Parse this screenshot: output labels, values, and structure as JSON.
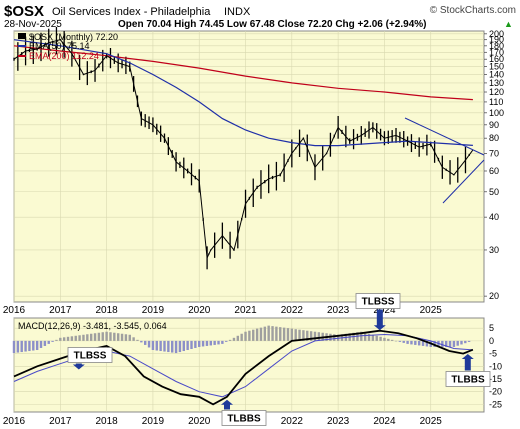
{
  "header": {
    "symbol": "$OSX",
    "name": "Oil Services Index - Philadelphia",
    "exchange": "INDX",
    "date": "28-Nov-2025",
    "ohlc_text": "Open 70.04  High 74.45  Low 67.48  Close 72.20  Chg +2.06 (+2.94%)",
    "ohlc_arrow": "▲",
    "watermark": "© StockCharts.com"
  },
  "colors": {
    "panel_bg": "#fafad2",
    "price": "#000000",
    "ema50": "#1f2fa8",
    "ema200": "#c0001a",
    "hist": "#9f9f9f",
    "hist_neg": "#8c8fc8",
    "macd": "#000000",
    "signal": "#4a4ac8",
    "annotation": "#1f3a9a",
    "trendline": "#1f2fa8"
  },
  "legend": {
    "price": "$OSX (Monthly) 72.20",
    "ema50": "EMA(50) 75.14",
    "ema200": "EMA(200) 112.24",
    "macd": "MACD(12,26,9) -3.481, -3.545, 0.064"
  },
  "annotations": [
    {
      "label": "TLBSS",
      "year": 2017.4,
      "value": -4
    },
    {
      "label": "TLBBS",
      "year": 2020.6,
      "value": -22
    },
    {
      "label": "TLBSS",
      "year": 2023.9,
      "value": 3
    },
    {
      "label": "TLBBS",
      "year": 2025.8,
      "value": -4
    }
  ],
  "chart_data": {
    "type": "line",
    "title": "$OSX Oil Services Index - Philadelphia INDX",
    "x_ticks": [
      2016,
      2017,
      2018,
      2019,
      2020,
      2021,
      2022,
      2023,
      2024,
      2025
    ],
    "x_tick_labels": [
      "2016",
      "2017",
      "2018",
      "2019",
      "2020",
      "2021",
      "2022",
      "2023",
      "2024",
      "2025"
    ],
    "price_axis": {
      "scale": "log",
      "range": [
        19,
        205
      ],
      "ticks": [
        20,
        30,
        40,
        50,
        60,
        70,
        80,
        90,
        100,
        110,
        120,
        130,
        140,
        150,
        160,
        170,
        180,
        190,
        200
      ],
      "tick_labels": [
        "20",
        "30",
        "40",
        "50",
        "60",
        "70",
        "80",
        "90",
        "100",
        "110",
        "120",
        "130",
        "140",
        "150",
        "160",
        "170",
        "180",
        "190",
        "200"
      ]
    },
    "macd_axis": {
      "range": [
        -28,
        9
      ],
      "ticks": [
        5,
        0,
        -5,
        -10,
        -15,
        -20,
        -25
      ],
      "tick_labels": [
        "5",
        "0",
        "-5",
        "-10",
        "-15",
        "-20",
        "-25"
      ]
    },
    "price_close": {
      "x": [
        2016.0,
        2016.25,
        2016.5,
        2016.75,
        2017.0,
        2017.25,
        2017.5,
        2017.75,
        2018.0,
        2018.25,
        2018.5,
        2018.75,
        2019.0,
        2019.25,
        2019.5,
        2019.75,
        2020.0,
        2020.17,
        2020.25,
        2020.5,
        2020.75,
        2021.0,
        2021.25,
        2021.5,
        2021.75,
        2022.0,
        2022.25,
        2022.5,
        2022.75,
        2023.0,
        2023.25,
        2023.5,
        2023.75,
        2024.0,
        2024.25,
        2024.5,
        2024.75,
        2025.0,
        2025.25,
        2025.5,
        2025.75,
        2025.91
      ],
      "y": [
        160,
        172,
        175,
        185,
        190,
        168,
        140,
        145,
        165,
        155,
        150,
        95,
        90,
        80,
        65,
        60,
        55,
        28,
        30,
        34,
        30,
        45,
        52,
        56,
        58,
        70,
        80,
        62,
        70,
        88,
        78,
        82,
        88,
        80,
        82,
        78,
        74,
        76,
        62,
        58,
        66,
        72.2
      ]
    },
    "ema50": {
      "x": [
        2016.0,
        2017.0,
        2018.0,
        2018.5,
        2019.0,
        2019.5,
        2020.0,
        2020.5,
        2021.0,
        2021.5,
        2022.0,
        2022.5,
        2023.0,
        2023.5,
        2024.0,
        2024.5,
        2025.0,
        2025.5,
        2025.91
      ],
      "y": [
        190,
        180,
        168,
        155,
        140,
        125,
        110,
        95,
        86,
        80,
        77,
        75,
        75,
        76,
        77,
        78,
        77,
        76,
        75.14
      ]
    },
    "ema200": {
      "x": [
        2016.0,
        2017.0,
        2018.0,
        2019.0,
        2020.0,
        2021.0,
        2022.0,
        2023.0,
        2024.0,
        2025.0,
        2025.91
      ],
      "y": [
        180,
        172,
        165,
        157,
        148,
        138,
        130,
        124,
        120,
        115,
        112.24
      ]
    },
    "macd": {
      "x": [
        2016.0,
        2016.5,
        2017.0,
        2017.5,
        2018.0,
        2018.4,
        2018.8,
        2019.2,
        2019.6,
        2020.0,
        2020.3,
        2020.6,
        2021.0,
        2021.5,
        2022.0,
        2022.5,
        2023.0,
        2023.5,
        2023.9,
        2024.3,
        2024.7,
        2025.0,
        2025.4,
        2025.7,
        2025.91
      ],
      "y": [
        -14,
        -10,
        -7,
        -4,
        -2,
        -6,
        -14,
        -18,
        -21,
        -22,
        -25,
        -22,
        -13,
        -6,
        0,
        1,
        2,
        3,
        4,
        3,
        1,
        -1,
        -4,
        -5,
        -3.481
      ]
    },
    "signal": {
      "x": [
        2016.0,
        2016.5,
        2017.0,
        2017.5,
        2018.0,
        2018.5,
        2019.0,
        2019.5,
        2020.0,
        2020.5,
        2021.0,
        2021.5,
        2022.0,
        2022.5,
        2023.0,
        2023.5,
        2024.0,
        2024.5,
        2025.0,
        2025.5,
        2025.91
      ],
      "y": [
        -16,
        -12,
        -9,
        -6,
        -4,
        -6,
        -11,
        -16,
        -20,
        -22,
        -18,
        -11,
        -4,
        0,
        1,
        2,
        2.5,
        2,
        0,
        -3,
        -3.545
      ]
    },
    "histogram": {
      "x": [
        2016.0,
        2016.5,
        2017.0,
        2017.5,
        2018.0,
        2018.5,
        2019.0,
        2019.5,
        2020.0,
        2020.5,
        2021.0,
        2021.5,
        2022.0,
        2022.5,
        2023.0,
        2023.5,
        2024.0,
        2024.5,
        2025.0,
        2025.5,
        2025.91
      ],
      "y": [
        -4,
        -3,
        1,
        2,
        3,
        2,
        -3,
        -4,
        -2,
        -1,
        3,
        5,
        4,
        3,
        2,
        3,
        1,
        -1,
        -2,
        -2,
        0.064
      ]
    }
  }
}
